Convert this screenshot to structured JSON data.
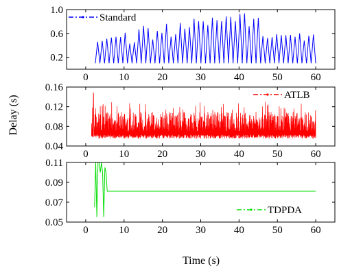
{
  "chart_data": [
    {
      "type": "line",
      "panel": "top",
      "series": [
        {
          "name": "Standard",
          "color": "#0000ff",
          "style": "dash-dot",
          "x_range": [
            2.5,
            60
          ],
          "oscillation_low": 0.1,
          "oscillation_high": [
            0.5,
            0.52,
            0.55,
            0.58,
            0.62,
            0.5,
            0.7,
            0.75,
            0.55,
            0.65,
            0.78,
            0.6,
            0.82,
            0.72,
            0.85,
            0.88,
            0.75,
            0.9,
            0.82,
            0.92,
            0.86,
            0.95,
            0.8,
            0.88,
            0.6,
            0.55,
            0.65,
            0.6,
            0.58,
            0.62,
            0.55,
            0.6
          ]
        }
      ],
      "x_ticks": [
        "0",
        "10",
        "20",
        "30",
        "40",
        "50",
        "60"
      ],
      "y_ticks": [
        "0.2",
        "0.6",
        "1.0"
      ],
      "xlim": [
        -5,
        65
      ],
      "ylim": [
        0.0,
        1.0
      ],
      "legend_position": "top-left"
    },
    {
      "type": "line",
      "panel": "middle",
      "series": [
        {
          "name": "ATLB",
          "color": "#ff0000",
          "style": "dash-dot",
          "x_range": [
            1.5,
            60
          ],
          "band_low": 0.055,
          "band_high": 0.11,
          "peak": 0.148,
          "peak_x": 2.0
        }
      ],
      "x_ticks": [
        "0",
        "10",
        "20",
        "30",
        "40",
        "50",
        "60"
      ],
      "y_ticks": [
        "0.04",
        "0.08",
        "0.12",
        "0.16"
      ],
      "xlim": [
        -5,
        65
      ],
      "ylim": [
        0.04,
        0.16
      ],
      "legend_position": "top-right"
    },
    {
      "type": "line",
      "panel": "bottom",
      "series": [
        {
          "name": "TDPDA",
          "color": "#00dd00",
          "style": "dash-dot",
          "points": [
            [
              2.3,
              0.065
            ],
            [
              2.6,
              0.11
            ],
            [
              2.9,
              0.055
            ],
            [
              3.2,
              0.11
            ],
            [
              3.5,
              0.11
            ],
            [
              3.8,
              0.1
            ],
            [
              4.1,
              0.11
            ],
            [
              4.4,
              0.1
            ],
            [
              4.7,
              0.055
            ],
            [
              5.0,
              0.105
            ],
            [
              5.3,
              0.1
            ],
            [
              5.6,
              0.081
            ],
            [
              60,
              0.081
            ]
          ]
        }
      ],
      "x_ticks": [
        "0",
        "10",
        "20",
        "30",
        "40",
        "50",
        "60"
      ],
      "y_ticks": [
        "0.05",
        "0.07",
        "0.09",
        "0.11"
      ],
      "xlim": [
        -5,
        65
      ],
      "ylim": [
        0.05,
        0.11
      ],
      "legend_position": "bottom-right"
    }
  ],
  "xlabel": "Time (s)",
  "ylabel": "Delay (s)"
}
